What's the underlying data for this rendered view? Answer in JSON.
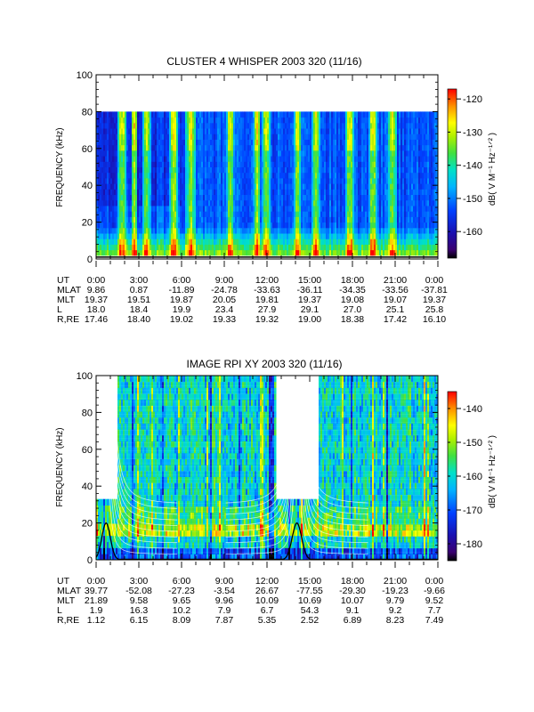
{
  "chart_data": [
    {
      "type": "heatmap",
      "title": "CLUSTER 4 WHISPER 2003 320 (11/16)",
      "ylabel": "FREQUENCY (kHz)",
      "ylim": [
        0,
        100
      ],
      "yticks": [
        "0",
        "20",
        "40",
        "60",
        "80",
        "100"
      ],
      "data_frequency_range_khz": [
        2,
        80
      ],
      "colorbar": {
        "label": "dB( V M⁻¹ Hz⁻¹ᐟ² )",
        "range": [
          -168,
          -117
        ],
        "ticks": [
          "-120",
          "-130",
          "-140",
          "-150",
          "-160"
        ]
      },
      "ephemeris": {
        "labels": [
          "UT",
          "MLAT",
          "MLT",
          "L",
          "R,RE"
        ],
        "UT": [
          "0:00",
          "3:00",
          "6:00",
          "9:00",
          "12:00",
          "15:00",
          "18:00",
          "21:00",
          "0:00"
        ],
        "MLAT": [
          "9.86",
          "0.87",
          "-11.89",
          "-24.78",
          "-33.63",
          "-36.11",
          "-34.35",
          "-33.56",
          "-37.81"
        ],
        "MLT": [
          "19.37",
          "19.51",
          "19.87",
          "20.05",
          "19.81",
          "19.37",
          "19.08",
          "19.07",
          "19.37"
        ],
        "L": [
          "18.0",
          "18.4",
          "19.9",
          "23.4",
          "27.9",
          "29.1",
          "27.0",
          "25.1",
          "25.8"
        ],
        "R,RE": [
          "17.46",
          "18.40",
          "19.02",
          "19.33",
          "19.32",
          "19.00",
          "18.38",
          "17.42",
          "16.10"
        ]
      },
      "intense_bands_hours": [
        [
          1.6,
          2.0
        ],
        [
          2.6,
          2.75
        ],
        [
          3.4,
          3.7
        ],
        [
          5.3,
          5.6
        ],
        [
          6.4,
          6.9
        ],
        [
          9.3,
          9.6
        ],
        [
          11.2,
          11.4
        ],
        [
          11.8,
          12.1
        ],
        [
          14.0,
          14.3
        ],
        [
          15.3,
          15.6
        ],
        [
          17.6,
          18.0
        ],
        [
          19.3,
          19.6
        ],
        [
          20.6,
          21.0
        ]
      ],
      "grid": false
    },
    {
      "type": "heatmap",
      "title": "IMAGE RPI XY 2003 320 (11/16)",
      "ylabel": "FREQUENCY (kHz)",
      "ylim": [
        0,
        100
      ],
      "yticks": [
        "0",
        "20",
        "40",
        "60",
        "80",
        "100"
      ],
      "colorbar": {
        "label": "dB( V M⁻¹ Hz⁻¹ᐟ² )",
        "range": [
          -185,
          -135
        ],
        "ticks": [
          "-140",
          "-150",
          "-160",
          "-170",
          "-180"
        ]
      },
      "coverage_segments": [
        {
          "t0": 0.0,
          "t1": 1.5,
          "fmax": 33
        },
        {
          "t0": 0.7,
          "t1": 1.5,
          "fmax": 17
        },
        {
          "t0": 1.5,
          "t1": 12.6,
          "fmax": 100
        },
        {
          "t0": 12.6,
          "t1": 15.6,
          "fmax": 33
        },
        {
          "t0": 15.6,
          "t1": 24.0,
          "fmax": 100
        }
      ],
      "ephemeris": {
        "labels": [
          "UT",
          "MLAT",
          "MLT",
          "L",
          "R,RE"
        ],
        "UT": [
          "0:00",
          "3:00",
          "6:00",
          "9:00",
          "12:00",
          "15:00",
          "18:00",
          "21:00",
          "0:00"
        ],
        "MLAT": [
          "39.77",
          "-52.08",
          "-27.23",
          "-3.54",
          "26.67",
          "-77.55",
          "-29.30",
          "-19.23",
          "-9.66"
        ],
        "MLT": [
          "21.89",
          "9.58",
          "9.65",
          "9.96",
          "10.09",
          "10.69",
          "10.07",
          "9.79",
          "9.52"
        ],
        "L": [
          "1.9",
          "16.3",
          "10.2",
          "7.9",
          "6.7",
          "54.3",
          "9.1",
          "9.2",
          "7.7"
        ],
        "R,RE": [
          "1.12",
          "6.15",
          "8.09",
          "7.87",
          "5.35",
          "2.52",
          "6.89",
          "8.23",
          "7.49"
        ]
      },
      "perigee_hours": [
        0.7,
        14.1
      ],
      "grid": false
    }
  ]
}
